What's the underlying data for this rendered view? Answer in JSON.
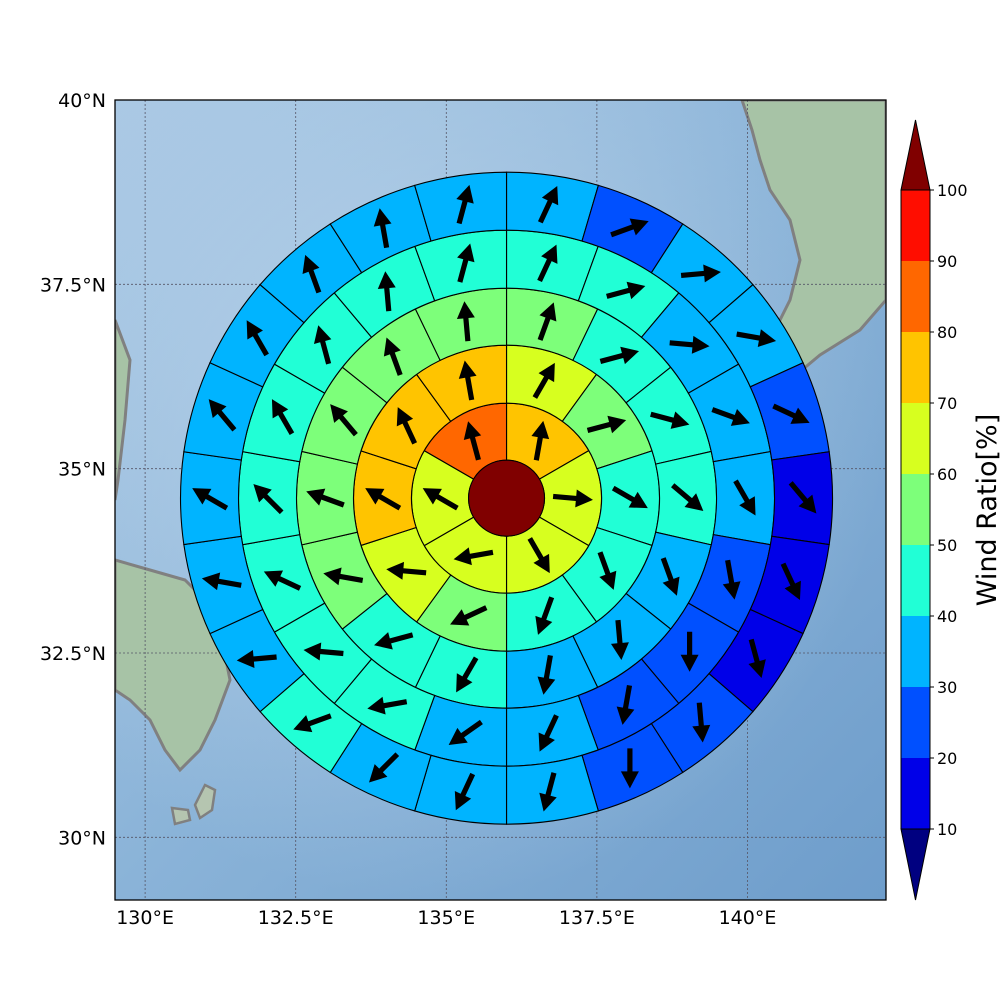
{
  "chart_data": {
    "type": "polar_wind_map",
    "x_axis": {
      "ticks": [
        {
          "lon": 130.0,
          "label": "130°E"
        },
        {
          "lon": 132.5,
          "label": "132.5°E"
        },
        {
          "lon": 135.0,
          "label": "135°E"
        },
        {
          "lon": 137.5,
          "label": "137.5°E"
        },
        {
          "lon": 140.0,
          "label": "140°E"
        }
      ],
      "range": [
        129.5,
        142.3
      ]
    },
    "y_axis": {
      "ticks": [
        {
          "lat": 30.0,
          "label": "30°N"
        },
        {
          "lat": 32.5,
          "label": "32.5°N"
        },
        {
          "lat": 35.0,
          "label": "35°N"
        },
        {
          "lat": 37.5,
          "label": "37.5°N"
        },
        {
          "lat": 40.0,
          "label": "40°N"
        }
      ],
      "range": [
        29.15,
        40.0
      ]
    },
    "grid": true,
    "colorbar": {
      "title": "Wind Ratio[%]",
      "ticks": [
        "10",
        "20",
        "30",
        "40",
        "50",
        "60",
        "70",
        "80",
        "90",
        "100"
      ],
      "levels": [
        0,
        10,
        20,
        30,
        40,
        50,
        60,
        70,
        80,
        90,
        100
      ],
      "colors": [
        "#000080",
        "#0000e8",
        "#0050ff",
        "#00b4ff",
        "#21ffd6",
        "#7dff7a",
        "#d7ff1f",
        "#ffc400",
        "#ff6700",
        "#ff0d00",
        "#800000"
      ],
      "extend": "both",
      "placement": "right"
    },
    "center": {
      "lon": 136.0,
      "lat": 34.6,
      "value": 100
    },
    "rings": [
      {
        "ring": 1,
        "values": [
          70,
          60,
          60,
          60,
          60,
          80
        ]
      },
      {
        "ring": 2,
        "values": [
          60,
          50,
          40,
          40,
          40,
          50,
          60,
          70,
          70,
          70
        ]
      },
      {
        "ring": 3,
        "values": [
          50,
          40,
          40,
          40,
          30,
          30,
          30,
          40,
          40,
          50,
          50,
          50,
          50,
          50
        ]
      },
      {
        "ring": 4,
        "values": [
          40,
          40,
          30,
          30,
          30,
          20,
          20,
          20,
          30,
          30,
          40,
          40,
          40,
          40,
          40,
          40,
          40,
          40
        ]
      },
      {
        "ring": 5,
        "values": [
          30,
          20,
          30,
          30,
          20,
          10,
          10,
          10,
          20,
          20,
          30,
          30,
          30,
          40,
          30,
          30,
          30,
          30,
          30,
          30,
          30,
          30
        ]
      }
    ],
    "wind_vectors_deg_bearing": {
      "ring1": [
        10,
        95,
        150,
        260,
        300,
        345
      ],
      "ring2": [
        30,
        75,
        120,
        160,
        200,
        245,
        275,
        300,
        335,
        350
      ],
      "ring3": [
        20,
        75,
        105,
        130,
        160,
        175,
        190,
        210,
        255,
        280,
        290,
        320,
        340,
        355
      ],
      "ring4": [
        25,
        75,
        95,
        110,
        150,
        170,
        180,
        190,
        205,
        235,
        260,
        275,
        295,
        315,
        330,
        345,
        355,
        15
      ],
      "ring5": [
        25,
        70,
        85,
        100,
        115,
        140,
        155,
        165,
        175,
        180,
        195,
        205,
        225,
        250,
        265,
        280,
        300,
        320,
        330,
        340,
        350,
        15
      ]
    }
  }
}
